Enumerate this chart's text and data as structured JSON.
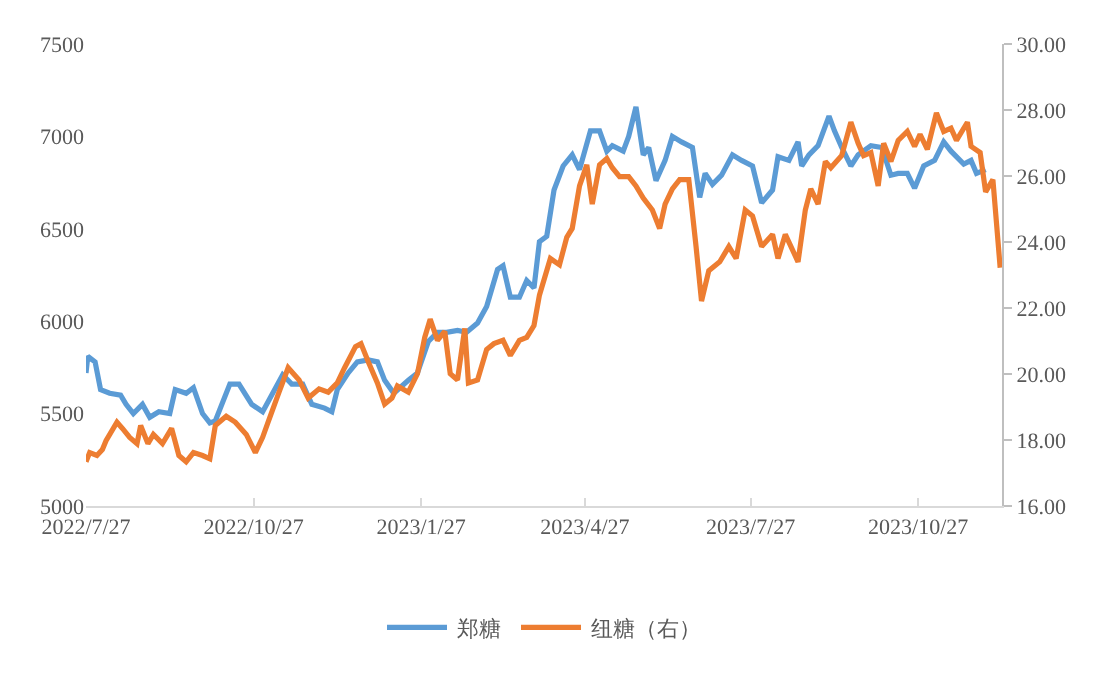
{
  "chart_data": {
    "type": "line",
    "legend": "bottom",
    "marker": "none",
    "line_style": "solid",
    "xlim": [
      "2022-07-27",
      "2023-12-12"
    ],
    "xticks": [
      {
        "value": "2022-07-27",
        "label": "2022/7/27"
      },
      {
        "value": "2022-10-27",
        "label": "2022/10/27"
      },
      {
        "value": "2023-01-27",
        "label": "2023/1/27"
      },
      {
        "value": "2023-04-27",
        "label": "2023/4/27"
      },
      {
        "value": "2023-07-27",
        "label": "2023/7/27"
      },
      {
        "value": "2023-10-27",
        "label": "2023/10/27"
      }
    ],
    "ylim": [
      5000,
      7500
    ],
    "yticks": [
      5000,
      5500,
      6000,
      6500,
      7000,
      7500
    ],
    "y2lim": [
      16,
      30
    ],
    "y2ticks": [
      {
        "value": 16,
        "label": "16.00"
      },
      {
        "value": 18,
        "label": "18.00"
      },
      {
        "value": 20,
        "label": "20.00"
      },
      {
        "value": 22,
        "label": "22.00"
      },
      {
        "value": 24,
        "label": "24.00"
      },
      {
        "value": 26,
        "label": "26.00"
      },
      {
        "value": 28,
        "label": "28.00"
      },
      {
        "value": 30,
        "label": "30.00"
      }
    ],
    "series": [
      {
        "name": "郑糖",
        "color": "#5b9bd5",
        "x": [
          "2022-07-27",
          "2022-07-28",
          "2022-08-01",
          "2022-08-04",
          "2022-08-09",
          "2022-08-15",
          "2022-08-18",
          "2022-08-22",
          "2022-08-27",
          "2022-08-31",
          "2022-09-05",
          "2022-09-11",
          "2022-09-14",
          "2022-09-20",
          "2022-09-24",
          "2022-09-29",
          "2022-10-03",
          "2022-10-06",
          "2022-10-14",
          "2022-10-19",
          "2022-10-26",
          "2022-11-01",
          "2022-11-06",
          "2022-11-12",
          "2022-11-17",
          "2022-11-23",
          "2022-11-28",
          "2022-12-05",
          "2022-12-09",
          "2022-12-12",
          "2022-12-18",
          "2022-12-23",
          "2022-12-29",
          "2023-01-03",
          "2023-01-07",
          "2023-01-12",
          "2023-01-20",
          "2023-01-25",
          "2023-01-31",
          "2023-02-05",
          "2023-02-10",
          "2023-02-16",
          "2023-02-21",
          "2023-02-27",
          "2023-03-04",
          "2023-03-10",
          "2023-03-13",
          "2023-03-17",
          "2023-03-22",
          "2023-03-26",
          "2023-03-30",
          "2023-04-02",
          "2023-04-06",
          "2023-04-10",
          "2023-04-15",
          "2023-04-20",
          "2023-04-24",
          "2023-04-30",
          "2023-05-05",
          "2023-05-09",
          "2023-05-12",
          "2023-05-18",
          "2023-05-21",
          "2023-05-25",
          "2023-05-29",
          "2023-06-01",
          "2023-06-05",
          "2023-06-10",
          "2023-06-14",
          "2023-06-19",
          "2023-06-25",
          "2023-06-29",
          "2023-07-02",
          "2023-07-06",
          "2023-07-11",
          "2023-07-17",
          "2023-07-22",
          "2023-07-28",
          "2023-08-02",
          "2023-08-08",
          "2023-08-11",
          "2023-08-17",
          "2023-08-22",
          "2023-08-24",
          "2023-08-28",
          "2023-09-02",
          "2023-09-08",
          "2023-09-11",
          "2023-09-15",
          "2023-09-20",
          "2023-09-24",
          "2023-10-01",
          "2023-10-07",
          "2023-10-12",
          "2023-10-16",
          "2023-10-21",
          "2023-10-25",
          "2023-10-30",
          "2023-11-05",
          "2023-11-10",
          "2023-11-14",
          "2023-11-21",
          "2023-11-25",
          "2023-11-28",
          "2023-12-03"
        ],
        "values": [
          5720,
          5810,
          5780,
          5630,
          5610,
          5600,
          5550,
          5500,
          5550,
          5480,
          5510,
          5500,
          5630,
          5610,
          5640,
          5500,
          5450,
          5460,
          5660,
          5660,
          5550,
          5510,
          5600,
          5710,
          5660,
          5660,
          5550,
          5530,
          5510,
          5630,
          5720,
          5780,
          5790,
          5780,
          5680,
          5610,
          5680,
          5720,
          5890,
          5940,
          5940,
          5950,
          5940,
          5990,
          6080,
          6280,
          6300,
          6130,
          6130,
          6220,
          6180,
          6430,
          6460,
          6710,
          6840,
          6900,
          6820,
          7030,
          7030,
          6920,
          6950,
          6920,
          7000,
          7160,
          6900,
          6940,
          6760,
          6870,
          7000,
          6970,
          6940,
          6670,
          6800,
          6740,
          6790,
          6900,
          6870,
          6840,
          6640,
          6710,
          6890,
          6870,
          6970,
          6840,
          6900,
          6950,
          7110,
          7030,
          6940,
          6840,
          6900,
          6950,
          6940,
          6790,
          6800,
          6800,
          6720,
          6840,
          6870,
          6970,
          6920,
          6850,
          6870,
          6800,
          6820
        ]
      },
      {
        "name": "纽糖（右）",
        "color": "#ed7d31",
        "axis": "y2",
        "x": [
          "2022-07-27",
          "2022-07-29",
          "2022-08-02",
          "2022-08-05",
          "2022-08-07",
          "2022-08-13",
          "2022-08-16",
          "2022-08-20",
          "2022-08-24",
          "2022-08-26",
          "2022-08-30",
          "2022-09-02",
          "2022-09-07",
          "2022-09-12",
          "2022-09-16",
          "2022-09-20",
          "2022-09-24",
          "2022-09-29",
          "2022-10-03",
          "2022-10-06",
          "2022-10-12",
          "2022-10-17",
          "2022-10-23",
          "2022-10-28",
          "2022-11-01",
          "2022-11-04",
          "2022-11-10",
          "2022-11-15",
          "2022-11-21",
          "2022-11-26",
          "2022-12-02",
          "2022-12-07",
          "2022-12-12",
          "2022-12-16",
          "2022-12-22",
          "2022-12-25",
          "2022-12-29",
          "2023-01-03",
          "2023-01-07",
          "2023-01-11",
          "2023-01-14",
          "2023-01-20",
          "2023-01-25",
          "2023-01-29",
          "2023-02-01",
          "2023-02-05",
          "2023-02-09",
          "2023-02-12",
          "2023-02-16",
          "2023-02-20",
          "2023-02-22",
          "2023-02-27",
          "2023-03-04",
          "2023-03-08",
          "2023-03-13",
          "2023-03-17",
          "2023-03-22",
          "2023-03-26",
          "2023-03-30",
          "2023-04-02",
          "2023-04-08",
          "2023-04-13",
          "2023-04-17",
          "2023-04-20",
          "2023-04-24",
          "2023-04-28",
          "2023-05-01",
          "2023-05-05",
          "2023-05-09",
          "2023-05-12",
          "2023-05-16",
          "2023-05-21",
          "2023-05-25",
          "2023-05-29",
          "2023-06-03",
          "2023-06-07",
          "2023-06-10",
          "2023-06-14",
          "2023-06-18",
          "2023-06-23",
          "2023-06-27",
          "2023-06-30",
          "2023-07-04",
          "2023-07-10",
          "2023-07-15",
          "2023-07-19",
          "2023-07-24",
          "2023-07-28",
          "2023-08-02",
          "2023-08-08",
          "2023-08-11",
          "2023-08-15",
          "2023-08-22",
          "2023-08-26",
          "2023-08-29",
          "2023-09-02",
          "2023-09-06",
          "2023-09-09",
          "2023-09-15",
          "2023-09-20",
          "2023-09-24",
          "2023-09-27",
          "2023-10-01",
          "2023-10-05",
          "2023-10-08",
          "2023-10-12",
          "2023-10-16",
          "2023-10-21",
          "2023-10-25",
          "2023-10-28",
          "2023-11-01",
          "2023-11-06",
          "2023-11-10",
          "2023-11-14",
          "2023-11-17",
          "2023-11-23",
          "2023-11-25",
          "2023-11-30",
          "2023-12-03",
          "2023-12-07",
          "2023-12-11"
        ],
        "values": [
          17.34,
          17.62,
          17.53,
          17.71,
          17.98,
          18.54,
          18.35,
          18.08,
          17.89,
          18.44,
          17.89,
          18.17,
          17.89,
          18.35,
          17.53,
          17.34,
          17.62,
          17.53,
          17.43,
          18.44,
          18.72,
          18.54,
          18.17,
          17.62,
          18.08,
          18.54,
          19.45,
          20.19,
          19.82,
          19.27,
          19.55,
          19.45,
          19.73,
          20.19,
          20.83,
          20.92,
          20.37,
          19.73,
          19.09,
          19.27,
          19.64,
          19.45,
          20.01,
          21.11,
          21.66,
          21.02,
          21.29,
          20.01,
          19.82,
          21.38,
          19.73,
          19.82,
          20.74,
          20.92,
          21.02,
          20.56,
          21.02,
          21.11,
          21.47,
          22.39,
          23.5,
          23.31,
          24.14,
          24.41,
          25.7,
          26.34,
          25.15,
          26.34,
          26.53,
          26.25,
          25.98,
          25.98,
          25.7,
          25.33,
          24.97,
          24.41,
          25.15,
          25.61,
          25.89,
          25.89,
          23.86,
          22.21,
          23.13,
          23.4,
          23.86,
          23.5,
          24.97,
          24.79,
          23.86,
          24.23,
          23.5,
          24.23,
          23.4,
          24.97,
          25.61,
          25.15,
          26.44,
          26.25,
          26.62,
          27.63,
          26.99,
          26.62,
          26.71,
          25.7,
          26.99,
          26.44,
          27.08,
          27.35,
          26.9,
          27.26,
          26.81,
          27.91,
          27.35,
          27.45,
          27.08,
          27.63,
          26.9,
          26.71,
          25.52,
          25.89,
          23.22
        ]
      }
    ]
  }
}
